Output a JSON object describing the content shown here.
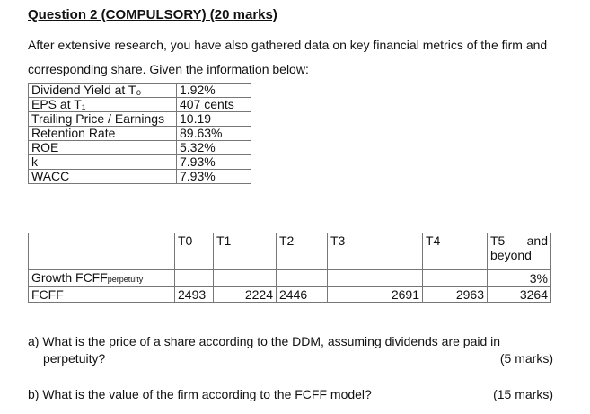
{
  "heading": "Question 2 (COMPULSORY) (20 marks)",
  "intro": "After extensive research, you have also gathered data on key financial metrics of the firm and corresponding share. Given the information below:",
  "metrics": [
    {
      "label": "Dividend Yield  at T₀",
      "value": "1.92%"
    },
    {
      "label": "EPS at T₁",
      "value": "407 cents"
    },
    {
      "label": "Trailing Price / Earnings",
      "value": "10.19"
    },
    {
      "label": "Retention Rate",
      "value": "89.63%"
    },
    {
      "label": "ROE",
      "value": "5.32%"
    },
    {
      "label": "k",
      "value": "7.93%"
    },
    {
      "label": "WACC",
      "value": "7.93%"
    }
  ],
  "growth_table": {
    "headers": [
      "T0",
      "T1",
      "T2",
      "T3",
      "T4"
    ],
    "t5_header_word": "T5",
    "t5_header_and": "and",
    "t5_header_beyond": "beyond",
    "growth_label": "Growth FCFF",
    "growth_label_sub": "perpetuity",
    "growth_value": "3%",
    "fcff_label": "FCFF",
    "fcff_values": [
      "2493",
      "2224",
      "2446",
      "2691",
      "2963",
      "3264"
    ]
  },
  "questions": {
    "a_text_line1": "a) What is the price of a share according to the DDM, assuming dividends are paid in",
    "a_text_line2": "perpetuity?",
    "a_marks": "(5 marks)",
    "b_text": "b) What is the value of the firm according to the FCFF model?",
    "b_marks": "(15 marks)"
  }
}
